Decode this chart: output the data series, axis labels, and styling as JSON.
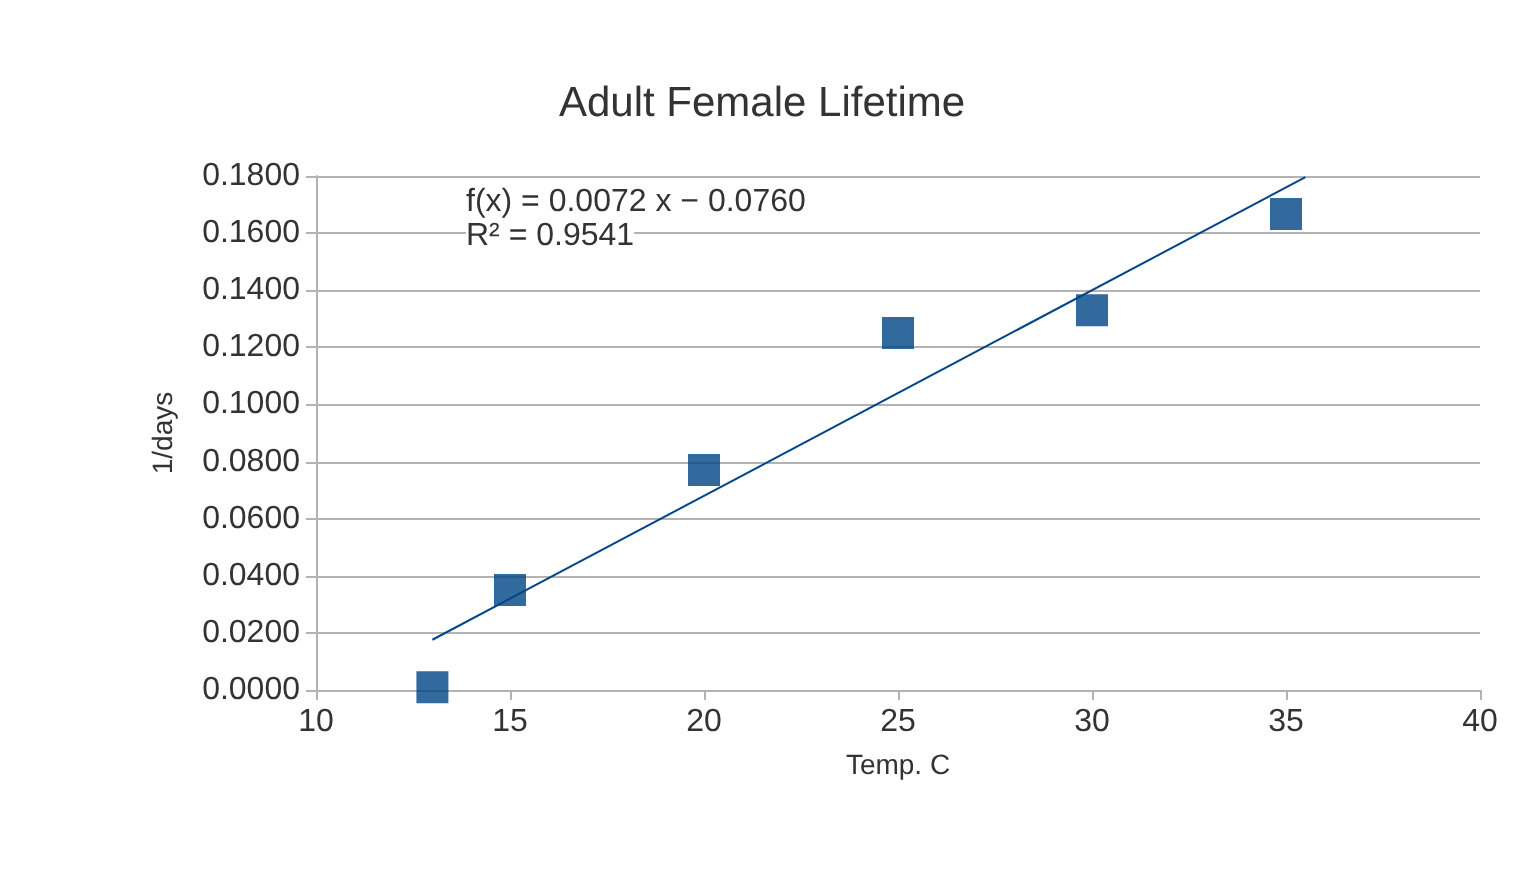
{
  "chart_data": {
    "type": "scatter",
    "title": "Adult Female Lifetime",
    "xlabel": "Temp. C",
    "ylabel": "1/days",
    "annotations": [
      "f(x) = 0.0072 x − 0.0760",
      "R² = 0.9541"
    ],
    "x": [
      13,
      15,
      20,
      25,
      30,
      35
    ],
    "series": [
      {
        "color": "#004586",
        "values": [
          0.001,
          0.035,
          0.077,
          0.125,
          0.133,
          0.1667
        ],
        "marker": "square"
      },
      {
        "type": "line",
        "color": "#004586",
        "x": [
          13,
          35.5
        ],
        "values": [
          0.0176,
          0.1796
        ],
        "marker": "none"
      }
    ],
    "xlim": [
      10,
      40
    ],
    "xticks": [
      10,
      15,
      20,
      25,
      30,
      35,
      40
    ],
    "ylim": [
      0,
      0.18
    ],
    "yticks": [
      {
        "value": 0,
        "label": "0.0000"
      },
      {
        "value": 0.02,
        "label": "0.0200"
      },
      {
        "value": 0.04,
        "label": "0.0400"
      },
      {
        "value": 0.06,
        "label": "0.0600"
      },
      {
        "value": 0.08,
        "label": "0.0800"
      },
      {
        "value": 0.1,
        "label": "0.1000"
      },
      {
        "value": 0.12,
        "label": "0.1200"
      },
      {
        "value": 0.14,
        "label": "0.1400"
      },
      {
        "value": 0.16,
        "label": "0.1600"
      },
      {
        "value": 0.18,
        "label": "0.1800"
      }
    ],
    "grid": "y"
  }
}
